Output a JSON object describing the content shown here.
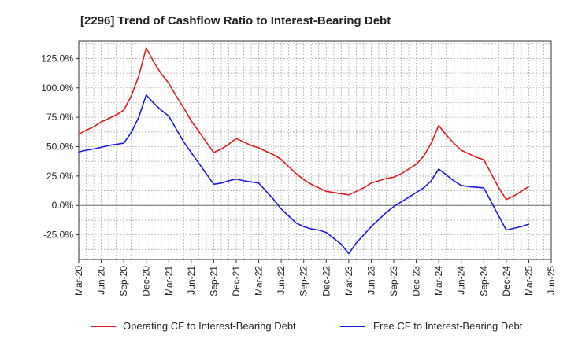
{
  "chart_data": {
    "type": "line",
    "title": "[2296]  Trend of Cashflow Ratio to Interest-Bearing Debt",
    "xlabel": "",
    "ylabel": "",
    "x_tick_labels": [
      "Mar-20",
      "Jun-20",
      "Sep-20",
      "Dec-20",
      "Mar-21",
      "Jun-21",
      "Sep-21",
      "Dec-21",
      "Mar-22",
      "Jun-22",
      "Sep-22",
      "Dec-22",
      "Mar-23",
      "Jun-23",
      "Sep-23",
      "Dec-23",
      "Mar-24",
      "Jun-24",
      "Sep-24",
      "Dec-24",
      "Mar-25",
      "Jun-25"
    ],
    "y_tick_labels": [
      "-25.0%",
      "0.0%",
      "25.0%",
      "50.0%",
      "75.0%",
      "100.0%",
      "125.0%"
    ],
    "y_ticks": [
      -25,
      0,
      25,
      50,
      75,
      100,
      125
    ],
    "ylim": [
      -23,
      140
    ],
    "ylim_display": [
      -46,
      140
    ],
    "grid": true,
    "legend_position": "bottom",
    "x": [
      "Mar-20",
      "Apr-20",
      "May-20",
      "Jun-20",
      "Jul-20",
      "Aug-20",
      "Sep-20",
      "Oct-20",
      "Nov-20",
      "Dec-20",
      "Jan-21",
      "Feb-21",
      "Mar-21",
      "Apr-21",
      "May-21",
      "Jun-21",
      "Jul-21",
      "Aug-21",
      "Sep-21",
      "Oct-21",
      "Nov-21",
      "Dec-21",
      "Jan-22",
      "Feb-22",
      "Mar-22",
      "Apr-22",
      "May-22",
      "Jun-22",
      "Jul-22",
      "Aug-22",
      "Sep-22",
      "Oct-22",
      "Nov-22",
      "Dec-22",
      "Jan-23",
      "Feb-23",
      "Mar-23",
      "Apr-23",
      "May-23",
      "Jun-23",
      "Jul-23",
      "Aug-23",
      "Sep-23",
      "Oct-23",
      "Nov-23",
      "Dec-23",
      "Jan-24",
      "Feb-24",
      "Mar-24",
      "Apr-24",
      "May-24",
      "Jun-24",
      "Jul-24",
      "Aug-24",
      "Sep-24",
      "Oct-24",
      "Nov-24",
      "Dec-24",
      "Jan-25",
      "Feb-25",
      "Mar-25"
    ],
    "series": [
      {
        "name": "Operating CF to Interest-Bearing Debt",
        "color": "#e8191c",
        "values": [
          60.5,
          64,
          67,
          71,
          74,
          77,
          81,
          93,
          110,
          134,
          122,
          112,
          104,
          93,
          83,
          72,
          63,
          54,
          45,
          48,
          52,
          57,
          54,
          51,
          49,
          46,
          43,
          39,
          33,
          27,
          22,
          18,
          15,
          12,
          11,
          10,
          9,
          12,
          15,
          19,
          21,
          23,
          24,
          27,
          31,
          35,
          42,
          53,
          68,
          60,
          53,
          47,
          44,
          41,
          39,
          27,
          15,
          5,
          8,
          12,
          16
        ],
        "color_name": "red"
      },
      {
        "name": "Free CF to Interest-Bearing Debt",
        "color": "#1919e8",
        "values": [
          45.5,
          47,
          48,
          49.5,
          51,
          52,
          53,
          62,
          75,
          94,
          87,
          81,
          76,
          65,
          54,
          45,
          36,
          27,
          18,
          19,
          21,
          22.5,
          21,
          20,
          19,
          12,
          5,
          -3,
          -9,
          -15,
          -18,
          -20,
          -21,
          -23,
          -28,
          -33,
          -41,
          -32,
          -25,
          -18,
          -12,
          -6,
          -1,
          3,
          7,
          11,
          15,
          21,
          31,
          26,
          21,
          17,
          16,
          15.5,
          15,
          3,
          -9,
          -21,
          -19.5,
          -18,
          -16
        ],
        "color_name": "blue"
      }
    ]
  }
}
